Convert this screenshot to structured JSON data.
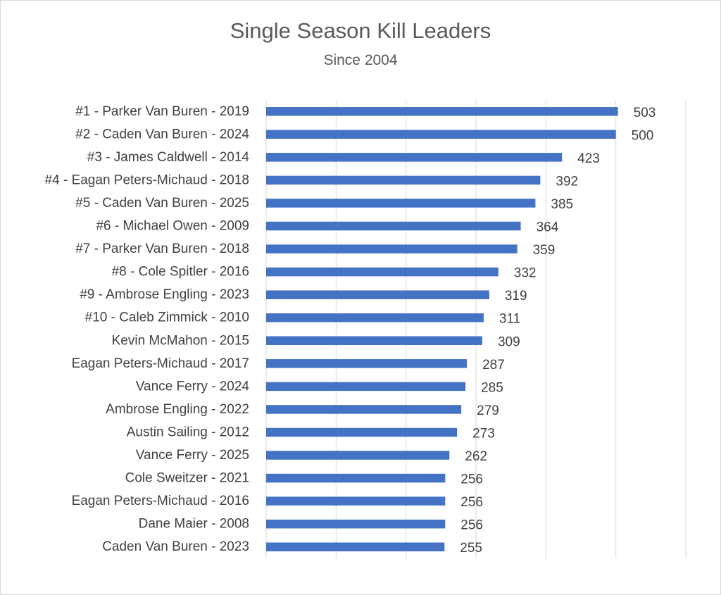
{
  "chart_data": {
    "type": "bar",
    "orientation": "horizontal",
    "title": "Single Season Kill Leaders",
    "subtitle": "Since 2004",
    "xlim": [
      0,
      600
    ],
    "grid": true,
    "bar_color": "#4472c4",
    "categories": [
      "#1 - Parker Van Buren - 2019",
      "#2 - Caden Van Buren - 2024",
      "#3 - James Caldwell - 2014",
      "#4 - Eagan Peters-Michaud - 2018",
      "#5 - Caden Van Buren - 2025",
      "#6 - Michael Owen - 2009",
      "#7 - Parker Van Buren - 2018",
      "#8 - Cole Spitler - 2016",
      "#9 - Ambrose Engling - 2023",
      "#10 - Caleb Zimmick - 2010",
      "Kevin McMahon - 2015",
      "Eagan Peters-Michaud - 2017",
      "Vance Ferry - 2024",
      "Ambrose Engling - 2022",
      "Austin Sailing - 2012",
      "Vance Ferry - 2025",
      "Cole Sweitzer - 2021",
      "Eagan Peters-Michaud - 2016",
      "Dane Maier - 2008",
      "Caden Van Buren - 2023"
    ],
    "values": [
      503,
      500,
      423,
      392,
      385,
      364,
      359,
      332,
      319,
      311,
      309,
      287,
      285,
      279,
      273,
      262,
      256,
      256,
      256,
      255
    ]
  }
}
